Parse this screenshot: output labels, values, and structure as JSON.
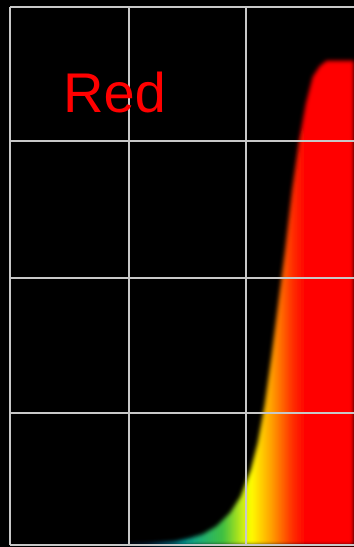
{
  "chart_data": {
    "type": "area",
    "title": "Red",
    "xlabel": "",
    "ylabel": "",
    "grid": true,
    "colors": {
      "background": "#000000",
      "grid": "#c8c8c8",
      "label": "#ff0000",
      "fill": "#ff0000"
    },
    "series": [
      {
        "x": [
          0.0,
          0.3,
          0.4,
          0.48,
          0.52,
          0.56,
          0.6,
          0.64,
          0.67,
          0.7,
          0.72,
          0.74,
          0.76,
          0.78,
          0.8,
          0.82,
          0.84,
          0.86,
          0.88,
          0.9,
          0.92,
          0.94,
          1.0
        ],
        "y": [
          0.0,
          0.0,
          0.002,
          0.006,
          0.012,
          0.02,
          0.035,
          0.06,
          0.09,
          0.14,
          0.19,
          0.26,
          0.35,
          0.45,
          0.55,
          0.66,
          0.75,
          0.82,
          0.87,
          0.89,
          0.9,
          0.9,
          0.9
        ]
      }
    ]
  }
}
